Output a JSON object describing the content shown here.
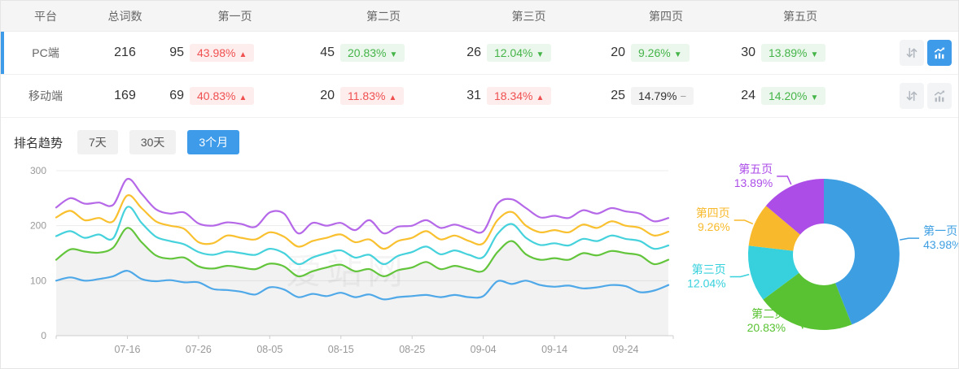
{
  "table": {
    "headers": {
      "platform": "平台",
      "total": "总词数",
      "p1": "第一页",
      "p2": "第二页",
      "p3": "第三页",
      "p4": "第四页",
      "p5": "第五页"
    },
    "rows": [
      {
        "platform": "PC端",
        "total": "216",
        "selected": true,
        "pages": [
          {
            "count": "95",
            "pct": "43.98%",
            "trend": "up"
          },
          {
            "count": "45",
            "pct": "20.83%",
            "trend": "down"
          },
          {
            "count": "26",
            "pct": "12.04%",
            "trend": "down"
          },
          {
            "count": "20",
            "pct": "9.26%",
            "trend": "down"
          },
          {
            "count": "30",
            "pct": "13.89%",
            "trend": "down"
          }
        ],
        "sort_button": "sort",
        "chart_button_active": true
      },
      {
        "platform": "移动端",
        "total": "169",
        "selected": false,
        "pages": [
          {
            "count": "69",
            "pct": "40.83%",
            "trend": "up"
          },
          {
            "count": "20",
            "pct": "11.83%",
            "trend": "up"
          },
          {
            "count": "31",
            "pct": "18.34%",
            "trend": "up"
          },
          {
            "count": "25",
            "pct": "14.79%",
            "trend": "flat"
          },
          {
            "count": "24",
            "pct": "14.20%",
            "trend": "down"
          }
        ],
        "sort_button": "sort",
        "chart_button_active": false
      }
    ]
  },
  "trend_section": {
    "title": "排名趋势",
    "tabs": [
      {
        "label": "7天",
        "active": false
      },
      {
        "label": "30天",
        "active": false
      },
      {
        "label": "3个月",
        "active": true
      }
    ]
  },
  "watermark": "爱站网",
  "colors": {
    "accent": "#3e9be9",
    "rise_red": "#f05050",
    "rise_red_bg": "#fdeded",
    "fall_green": "#44b449",
    "fall_green_bg": "#ebf7ec",
    "flat_bg": "#f3f3f4"
  },
  "chart_data": [
    {
      "type": "line",
      "title": "排名趋势 (3个月)",
      "x_tick_labels": [
        "07-16",
        "07-26",
        "08-05",
        "08-15",
        "08-25",
        "09-04",
        "09-14",
        "09-24"
      ],
      "x_tick_indices": [
        5,
        10,
        15,
        20,
        25,
        30,
        35,
        40
      ],
      "point_interval_days": 2,
      "ylim": [
        0,
        300
      ],
      "y_ticks": [
        0,
        100,
        200,
        300
      ],
      "grid": "horizontal",
      "legend_position": "none",
      "series": [
        {
          "name": "第一页",
          "color": "#4fa8e8",
          "values": [
            100,
            106,
            100,
            103,
            108,
            118,
            103,
            99,
            101,
            97,
            97,
            85,
            83,
            80,
            75,
            88,
            84,
            70,
            76,
            72,
            78,
            70,
            75,
            66,
            70,
            72,
            74,
            70,
            74,
            70,
            72,
            99,
            94,
            100,
            92,
            89,
            91,
            86,
            88,
            92,
            90,
            79,
            82,
            92
          ]
        },
        {
          "name": "第二页",
          "color": "#63c53c",
          "area": true,
          "area_opacity": 0.05,
          "values": [
            138,
            157,
            153,
            151,
            160,
            196,
            170,
            146,
            140,
            142,
            126,
            122,
            127,
            124,
            121,
            131,
            126,
            108,
            117,
            124,
            129,
            117,
            121,
            108,
            119,
            124,
            134,
            121,
            127,
            121,
            118,
            152,
            172,
            148,
            138,
            141,
            138,
            150,
            146,
            154,
            150,
            146,
            130,
            138
          ]
        },
        {
          "name": "第三页",
          "color": "#46d2dc",
          "values": [
            181,
            190,
            178,
            184,
            177,
            234,
            205,
            180,
            172,
            166,
            152,
            147,
            153,
            150,
            147,
            158,
            150,
            130,
            142,
            150,
            155,
            142,
            147,
            130,
            145,
            152,
            162,
            148,
            155,
            147,
            143,
            185,
            203,
            178,
            165,
            168,
            164,
            176,
            172,
            182,
            176,
            172,
            158,
            164
          ]
        },
        {
          "name": "第四页",
          "color": "#f9c02f",
          "values": [
            215,
            227,
            210,
            214,
            208,
            255,
            232,
            208,
            200,
            194,
            170,
            168,
            182,
            178,
            175,
            188,
            180,
            162,
            172,
            178,
            184,
            170,
            175,
            158,
            172,
            178,
            190,
            175,
            182,
            172,
            168,
            210,
            225,
            200,
            188,
            192,
            188,
            202,
            196,
            208,
            200,
            196,
            182,
            189
          ]
        },
        {
          "name": "第五页",
          "color": "#b568e8",
          "values": [
            233,
            250,
            240,
            242,
            238,
            285,
            258,
            230,
            222,
            224,
            204,
            200,
            206,
            203,
            198,
            224,
            222,
            186,
            205,
            200,
            205,
            192,
            210,
            186,
            198,
            200,
            210,
            196,
            202,
            194,
            190,
            240,
            248,
            232,
            215,
            218,
            214,
            228,
            222,
            232,
            226,
            222,
            208,
            214
          ]
        }
      ]
    },
    {
      "type": "pie",
      "donut": true,
      "labels": [
        "第一页",
        "第二页",
        "第三页",
        "第四页",
        "第五页"
      ],
      "values": [
        43.98,
        20.83,
        12.04,
        9.26,
        13.89
      ],
      "unit": "%",
      "colors": [
        "#3d9fe2",
        "#59c232",
        "#36d1dc",
        "#f8ba2c",
        "#ac4de8"
      ],
      "label_position": "outside-with-leader-lines"
    }
  ]
}
